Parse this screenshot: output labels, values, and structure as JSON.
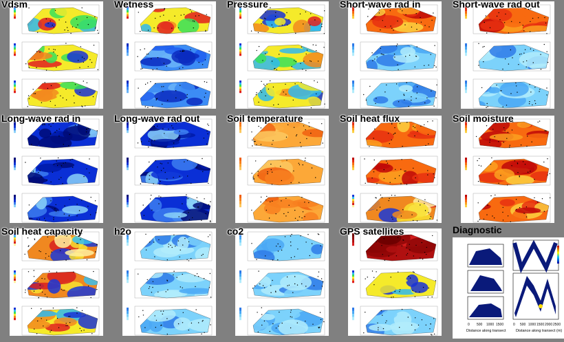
{
  "tiles": [
    {
      "label": "Vdsm",
      "palettes": [
        "rainbow",
        "rainbow",
        "rainbow"
      ]
    },
    {
      "label": "Wetness",
      "palettes": [
        "rainbow",
        "blue",
        "blue"
      ]
    },
    {
      "label": "Pressure",
      "palettes": [
        "rainbow",
        "rainbow",
        "rainbow"
      ]
    },
    {
      "label": "Short-wave rad in",
      "palettes": [
        "warm",
        "lightblue",
        "lightblue"
      ]
    },
    {
      "label": "Short-wave rad out",
      "palettes": [
        "warm",
        "lightblue",
        "lightblue"
      ]
    },
    {
      "label": "Long-wave rad in",
      "palettes": [
        "deepblue",
        "deepblue",
        "deepblue"
      ]
    },
    {
      "label": "Long-wave rad out",
      "palettes": [
        "deepblue",
        "deepblue",
        "deepblue"
      ]
    },
    {
      "label": "Soil temperature",
      "palettes": [
        "orange",
        "orange",
        "orange"
      ]
    },
    {
      "label": "Soil heat flux",
      "palettes": [
        "warm",
        "warm",
        "mix"
      ]
    },
    {
      "label": "Soil moisture",
      "palettes": [
        "warm",
        "warm",
        "warm"
      ]
    },
    {
      "label": "Soil heat capacity",
      "palettes": [
        "mix",
        "mix",
        "rainbow"
      ]
    },
    {
      "label": "h2o",
      "palettes": [
        "lightblue",
        "lightblue",
        "lightblue"
      ]
    },
    {
      "label": "co2",
      "palettes": [
        "lightblue",
        "lightblue",
        "lightblue"
      ]
    },
    {
      "label": "GPS satellites",
      "palettes": [
        "darkred",
        "rainbow",
        "lightblue"
      ]
    }
  ],
  "diagnostic": {
    "title": "Diagnostic",
    "x_label_left": "Distance along transect",
    "x_label_right": "Distance along transect (m)",
    "x_ticks_left": [
      "0",
      "500",
      "1000",
      "1500"
    ],
    "x_ticks_right": [
      "0",
      "500",
      "1000",
      "1500",
      "2000",
      "2500"
    ]
  },
  "colors": {
    "background": "#808080",
    "panel": "#ffffff"
  }
}
